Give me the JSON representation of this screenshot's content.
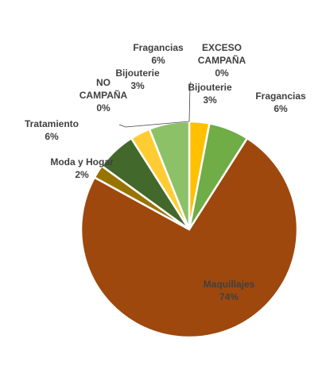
{
  "chart_data": {
    "type": "pie",
    "title": "",
    "legend": "none",
    "slices": [
      {
        "label": "EXCESO CAMPAÑA",
        "value": 0,
        "display": "0%",
        "color": "#4A6FA5"
      },
      {
        "label": "Bijouterie",
        "value": 3,
        "display": "3%",
        "color": "#FFC000"
      },
      {
        "label": "Fragancias",
        "value": 6,
        "display": "6%",
        "color": "#70AD47"
      },
      {
        "label": "Maquillajes",
        "value": 74,
        "display": "74%",
        "color": "#9E480E"
      },
      {
        "label": "Moda y Hogar",
        "value": 2,
        "display": "2%",
        "color": "#997300"
      },
      {
        "label": "Tratamiento",
        "value": 6,
        "display": "6%",
        "color": "#43682B"
      },
      {
        "label": "NO CAMPAÑA",
        "value": 0,
        "display": "0%",
        "color": "#264478"
      },
      {
        "label": "Bijouterie",
        "value": 3,
        "display": "3%",
        "color": "#FFCD33"
      },
      {
        "label": "Fragancias",
        "value": 6,
        "display": "6%",
        "color": "#8CC168"
      }
    ]
  }
}
